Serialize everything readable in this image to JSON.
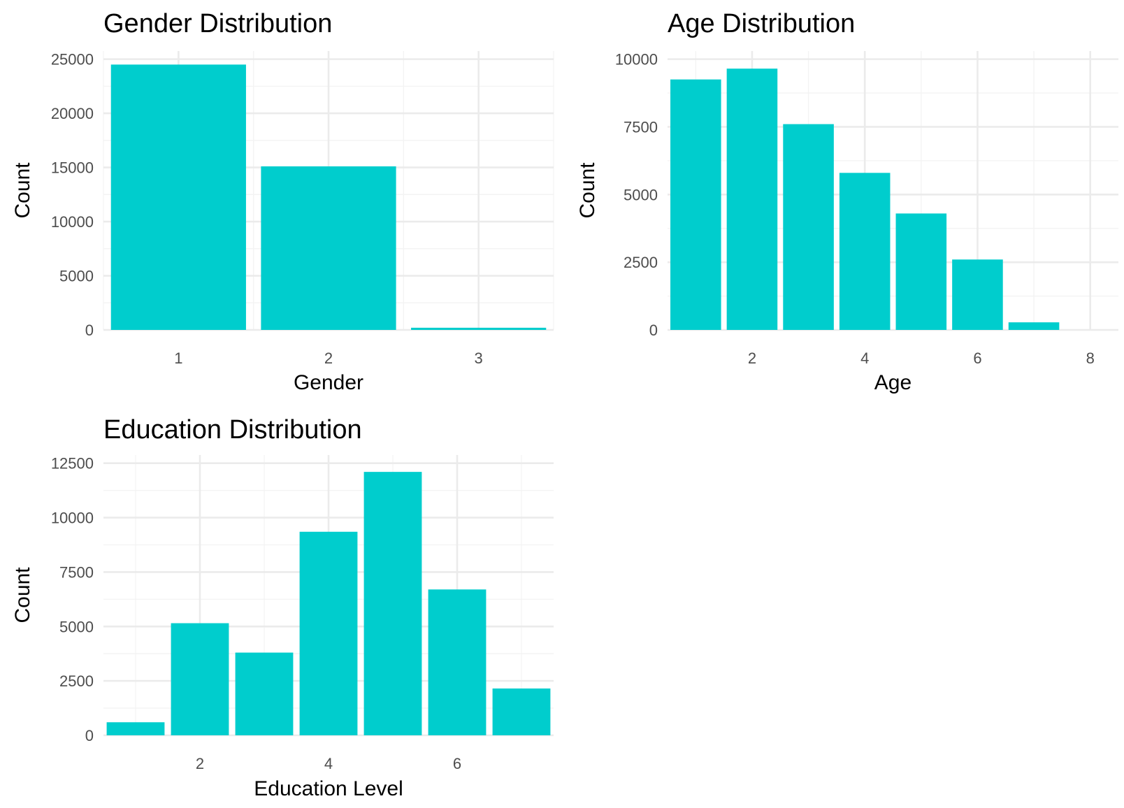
{
  "bar_color": "#00CDCD",
  "grid_color": "#EBEBEB",
  "chart_data": [
    {
      "id": "gender",
      "type": "bar",
      "title": "Gender Distribution",
      "xlabel": "Gender",
      "ylabel": "Count",
      "x": [
        1,
        2,
        3
      ],
      "values": [
        24500,
        15100,
        200
      ],
      "xlim": [
        0.5,
        3.5
      ],
      "ylim": [
        0,
        25000
      ],
      "xticks": [
        "1",
        "2",
        "3"
      ],
      "yticks": [
        "0",
        "5000",
        "10000",
        "15000",
        "20000",
        "25000"
      ],
      "grid": true
    },
    {
      "id": "age",
      "type": "bar",
      "title": "Age Distribution",
      "xlabel": "Age",
      "ylabel": "Count",
      "x": [
        1,
        2,
        3,
        4,
        5,
        6,
        7
      ],
      "values": [
        9250,
        9650,
        7600,
        5800,
        4300,
        2600,
        280
      ],
      "xlim": [
        0.5,
        8.5
      ],
      "ylim": [
        0,
        10000
      ],
      "xticks": [
        "2",
        "4",
        "6",
        "8"
      ],
      "yticks": [
        "0",
        "2500",
        "5000",
        "7500",
        "10000"
      ],
      "grid": true
    },
    {
      "id": "education",
      "type": "bar",
      "title": "Education Distribution",
      "xlabel": "Education Level",
      "ylabel": "Count",
      "x": [
        1,
        2,
        3,
        4,
        5,
        6,
        7
      ],
      "values": [
        600,
        5150,
        3800,
        9350,
        12100,
        6700,
        2150
      ],
      "xlim": [
        0.5,
        7.5
      ],
      "ylim": [
        0,
        12500
      ],
      "xticks": [
        "2",
        "4",
        "6"
      ],
      "yticks": [
        "0",
        "2500",
        "5000",
        "7500",
        "10000",
        "12500"
      ],
      "grid": true
    }
  ]
}
